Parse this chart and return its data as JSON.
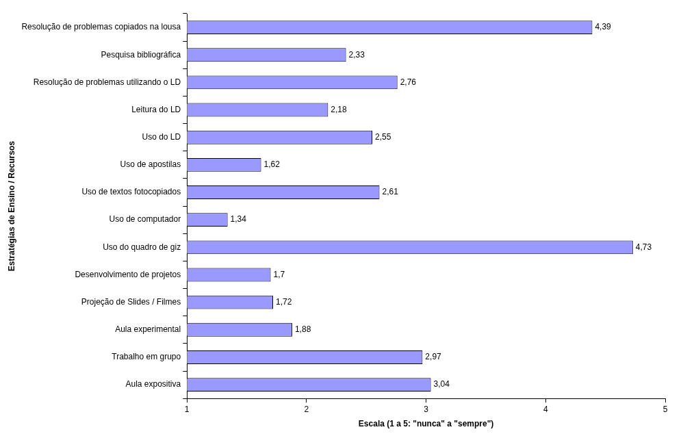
{
  "chart_data": {
    "type": "bar",
    "orientation": "horizontal",
    "xlabel": "Escala (1 a 5: \"nunca\" a \"sempre\")",
    "ylabel": "Estratégias de Ensino / Recursos",
    "categories": [
      "Resolução de problemas copiados na lousa",
      "Pesquisa bibliográfica",
      "Resolução de problemas utilizando o LD",
      "Leitura do LD",
      "Uso do LD",
      "Uso de apostilas",
      "Uso de textos fotocopiados",
      "Uso de computador",
      "Uso do quadro de giz",
      "Desenvolvimento de projetos",
      "Projeção de Slides / Filmes",
      "Aula experimental",
      "Trabalho em grupo",
      "Aula expositiva"
    ],
    "values": [
      4.39,
      2.33,
      2.76,
      2.18,
      2.55,
      1.62,
      2.61,
      1.34,
      4.73,
      1.7,
      1.72,
      1.88,
      2.97,
      3.04
    ],
    "value_labels": [
      "4,39",
      "2,33",
      "2,76",
      "2,18",
      "2,55",
      "1,62",
      "2,61",
      "1,34",
      "4,73",
      "1,7",
      "1,72",
      "1,88",
      "2,97",
      "3,04"
    ],
    "color": "#9999ff",
    "xlim": [
      1,
      5
    ],
    "xticks": [
      1,
      2,
      3,
      4,
      5
    ]
  }
}
